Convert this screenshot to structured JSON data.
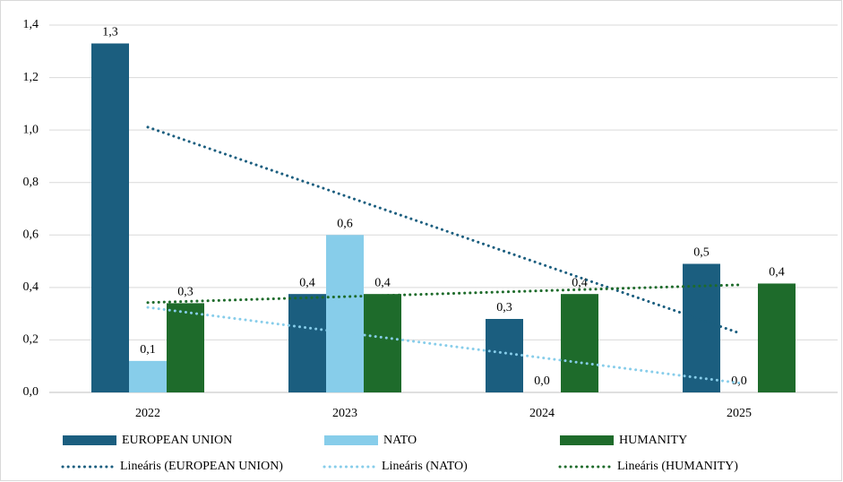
{
  "chart_data": {
    "type": "bar",
    "categories": [
      "2022",
      "2023",
      "2024",
      "2025"
    ],
    "series": [
      {
        "name": "EUROPEAN UNION",
        "color": "#1b5e7f",
        "values": [
          1.33,
          0.375,
          0.28,
          0.49
        ],
        "value_labels": [
          "1,3",
          "0,4",
          "0,3",
          "0,5"
        ],
        "trend_name": "Lineáris (EUROPEAN UNION)"
      },
      {
        "name": "NATO",
        "color": "#87cdea",
        "values": [
          0.12,
          0.6,
          0,
          0
        ],
        "value_labels": [
          "0,1",
          "0,6",
          "0,0",
          "0,0"
        ],
        "trend_name": "Lineáris (NATO)"
      },
      {
        "name": "HUMANITY",
        "color": "#1e6b2b",
        "values": [
          0.34,
          0.375,
          0.375,
          0.415
        ],
        "value_labels": [
          "0,3",
          "0,4",
          "0,4",
          "0,4"
        ],
        "trend_name": "Lineáris (HUMANITY)"
      }
    ],
    "ylim": [
      0,
      1.4
    ],
    "yticks": [
      {
        "value": 0,
        "label": "0,0"
      },
      {
        "value": 0.2,
        "label": "0,2"
      },
      {
        "value": 0.4,
        "label": "0,4"
      },
      {
        "value": 0.6,
        "label": "0,6"
      },
      {
        "value": 0.8,
        "label": "0,8"
      },
      {
        "value": 1.0,
        "label": "1,0"
      },
      {
        "value": 1.2,
        "label": "1,2"
      },
      {
        "value": 1.4,
        "label": "1,4"
      }
    ],
    "grid": true,
    "legend": "bottom"
  }
}
